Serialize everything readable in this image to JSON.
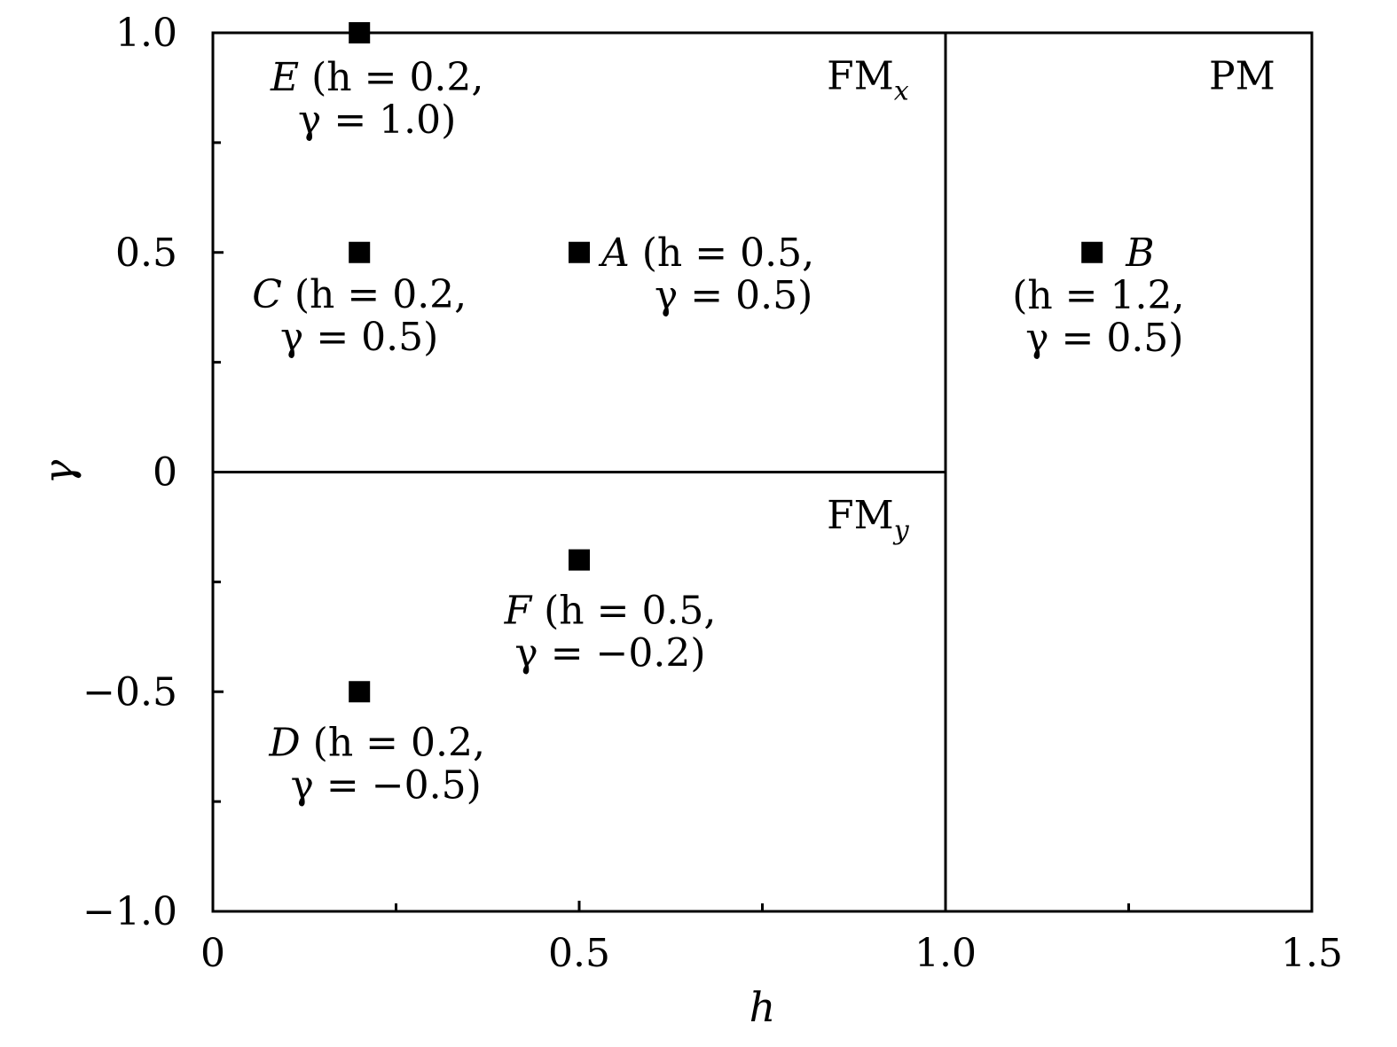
{
  "chart_data": {
    "type": "scatter",
    "xlabel": "h",
    "ylabel": "γ",
    "xlim": [
      0,
      1.5
    ],
    "ylim": [
      -1.0,
      1.0
    ],
    "x_ticks": [
      {
        "value": 0,
        "label": "0"
      },
      {
        "value": 0.5,
        "label": "0.5"
      },
      {
        "value": 1.0,
        "label": "1.0"
      },
      {
        "value": 1.5,
        "label": "1.5"
      }
    ],
    "x_minor_ticks": [
      0.25,
      0.75,
      1.25
    ],
    "y_ticks": [
      {
        "value": 1.0,
        "label": "1.0"
      },
      {
        "value": 0.5,
        "label": "0.5"
      },
      {
        "value": 0,
        "label": "0"
      },
      {
        "value": -0.5,
        "label": "−0.5"
      },
      {
        "value": -1.0,
        "label": "−1.0"
      }
    ],
    "y_minor_ticks": [
      0.75,
      0.25,
      -0.25,
      -0.75
    ],
    "boundaries": [
      {
        "x": [
          1.0,
          1.0
        ],
        "y": [
          -1.0,
          1.0
        ]
      },
      {
        "x": [
          0,
          1.0
        ],
        "y": [
          0,
          0
        ]
      }
    ],
    "regions": [
      {
        "main": "FM",
        "sub": "x",
        "x": 0.95,
        "y": 0.9
      },
      {
        "main": "FM",
        "sub": "y",
        "x": 0.95,
        "y": -0.1
      },
      {
        "main": "PM",
        "sub": "",
        "x": 1.45,
        "y": 0.9
      }
    ],
    "points": [
      {
        "name": "A",
        "x": 0.5,
        "y": 0.5,
        "line1_rest": " (h = 0.5,",
        "line2": "γ = 0.5)"
      },
      {
        "name": "B",
        "x": 1.2,
        "y": 0.5,
        "line1_rest": "",
        "line2": "(h = 1.2,",
        "line3": "γ = 0.5)"
      },
      {
        "name": "C",
        "x": 0.2,
        "y": 0.5,
        "line1_rest": " (h = 0.2,",
        "line2": "γ = 0.5)"
      },
      {
        "name": "D",
        "x": 0.2,
        "y": -0.5,
        "line1_rest": " (h = 0.2,",
        "line2": "γ = −0.5)"
      },
      {
        "name": "E",
        "x": 0.2,
        "y": 1.0,
        "line1_rest": " (h = 0.2,",
        "line2": "γ = 1.0)"
      },
      {
        "name": "F",
        "x": 0.5,
        "y": -0.2,
        "line1_rest": " (h = 0.5,",
        "line2": "γ = −0.2)"
      }
    ],
    "marker": "square",
    "marker_color": "#000000",
    "grid": false,
    "legend": "none"
  }
}
